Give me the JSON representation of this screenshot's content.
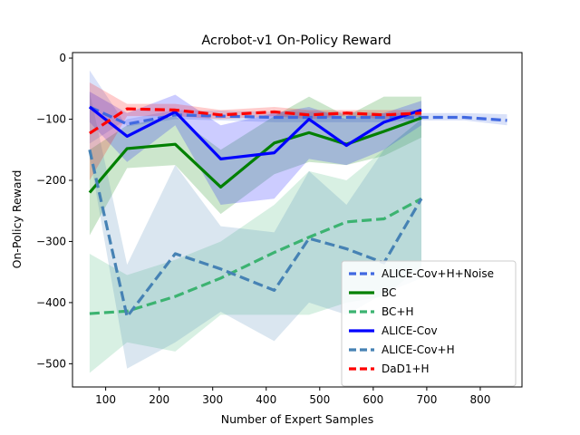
{
  "chart_data": {
    "type": "line",
    "title": "Acrobot-v1 On-Policy Reward",
    "xlabel": "Number of Expert Samples",
    "ylabel": "On-Policy Reward",
    "xlim": [
      38,
      878
    ],
    "ylim": [
      -538,
      9
    ],
    "xticks": [
      100,
      200,
      300,
      400,
      500,
      600,
      700,
      800
    ],
    "yticks": [
      0,
      -100,
      -200,
      -300,
      -400,
      -500
    ],
    "xtick_labels": [
      "100",
      "200",
      "300",
      "400",
      "500",
      "600",
      "700",
      "800"
    ],
    "ytick_labels": [
      "0",
      "−100",
      "−200",
      "−300",
      "−400",
      "−500"
    ],
    "grid": false,
    "legend_position": "lower-right",
    "series": [
      {
        "name": "ALICE-Cov+H+Noise",
        "color": "#4169e1",
        "dash": "dashed",
        "x": [
          70,
          140,
          230,
          315,
          415,
          480,
          550,
          620,
          690,
          770,
          850
        ],
        "y": [
          -80,
          -108,
          -93,
          -95,
          -97,
          -97,
          -97,
          -97,
          -97,
          -97,
          -102
        ],
        "band_lower": [
          -20,
          -112,
          -100,
          -102,
          -105,
          -105,
          -105,
          -105,
          -102,
          -102,
          -110
        ],
        "band_upper": [
          -140,
          -100,
          -85,
          -86,
          -88,
          -88,
          -88,
          -90,
          -90,
          -90,
          -92
        ]
      },
      {
        "name": "BC",
        "color": "#008000",
        "dash": "solid",
        "x": [
          70,
          140,
          230,
          315,
          415,
          480,
          550,
          620,
          690
        ],
        "y": [
          -220,
          -148,
          -141,
          -211,
          -139,
          -122,
          -141,
          -120,
          -98
        ],
        "band_lower": [
          -290,
          -180,
          -175,
          -255,
          -190,
          -170,
          -175,
          -160,
          -130
        ],
        "band_upper": [
          -150,
          -110,
          -95,
          -150,
          -95,
          -63,
          -95,
          -63,
          -63
        ]
      },
      {
        "name": "BC+H",
        "color": "#3cb371",
        "dash": "dashed",
        "x": [
          70,
          140,
          230,
          315,
          415,
          480,
          550,
          620,
          690
        ],
        "y": [
          -418,
          -414,
          -390,
          -360,
          -318,
          -293,
          -268,
          -263,
          -230
        ],
        "band_lower": [
          -515,
          -465,
          -480,
          -420,
          -420,
          -420,
          -400,
          -390,
          -340
        ],
        "band_upper": [
          -320,
          -355,
          -330,
          -300,
          -240,
          -185,
          -200,
          -150,
          -100
        ]
      },
      {
        "name": "ALICE-Cov",
        "color": "#0000ff",
        "dash": "solid",
        "x": [
          70,
          140,
          230,
          315,
          415,
          480,
          550,
          620,
          690
        ],
        "y": [
          -80,
          -128,
          -88,
          -165,
          -155,
          -100,
          -143,
          -105,
          -85
        ],
        "band_lower": [
          -105,
          -170,
          -110,
          -240,
          -230,
          -165,
          -175,
          -150,
          -110
        ],
        "band_upper": [
          -55,
          -90,
          -60,
          -110,
          -90,
          -80,
          -100,
          -90,
          -70
        ]
      },
      {
        "name": "ALICE-Cov+H",
        "color": "#4682b4",
        "dash": "dashed",
        "x": [
          70,
          140,
          230,
          315,
          415,
          480,
          550,
          620,
          690
        ],
        "y": [
          -150,
          -423,
          -320,
          -345,
          -380,
          -295,
          -312,
          -335,
          -230
        ],
        "band_lower": [
          -160,
          -508,
          -465,
          -415,
          -463,
          -400,
          -420,
          -385,
          -360
        ],
        "band_upper": [
          -55,
          -338,
          -175,
          -275,
          -285,
          -185,
          -240,
          -150,
          -100
        ]
      },
      {
        "name": "DaD1+H",
        "color": "#ff0000",
        "dash": "dashed",
        "x": [
          70,
          140,
          230,
          315,
          415,
          480,
          550,
          620,
          690
        ],
        "y": [
          -123,
          -83,
          -85,
          -93,
          -88,
          -93,
          -90,
          -93,
          -90
        ],
        "band_lower": [
          -200,
          -95,
          -95,
          -100,
          -95,
          -100,
          -95,
          -100,
          -95
        ],
        "band_upper": [
          -40,
          -75,
          -75,
          -85,
          -80,
          -85,
          -85,
          -85,
          -85
        ]
      }
    ]
  }
}
